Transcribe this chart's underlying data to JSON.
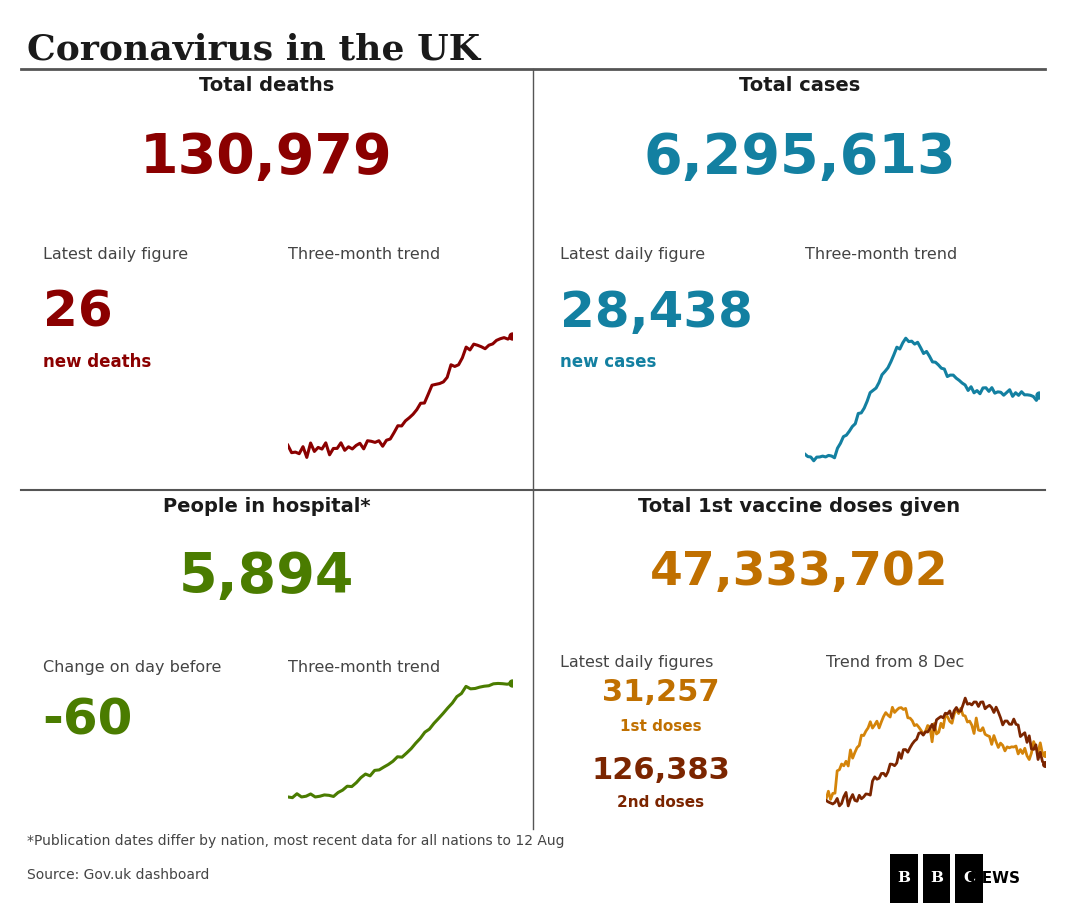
{
  "title": "Coronavirus in the UK",
  "bg_color": "#ffffff",
  "title_color": "#1a1a1a",
  "divider_color": "#555555",
  "deaths_title": "Total deaths",
  "deaths_total": "130,979",
  "deaths_total_color": "#8B0000",
  "deaths_daily_label": "Latest daily figure",
  "deaths_trend_label": "Three-month trend",
  "deaths_daily_value": "26",
  "deaths_daily_color": "#8B0000",
  "deaths_daily_sublabel": "new deaths",
  "deaths_trend_color": "#8B0000",
  "cases_title": "Total cases",
  "cases_total": "6,295,613",
  "cases_total_color": "#1380A1",
  "cases_daily_label": "Latest daily figure",
  "cases_trend_label": "Three-month trend",
  "cases_daily_value": "28,438",
  "cases_daily_color": "#1380A1",
  "cases_daily_sublabel": "new cases",
  "cases_trend_color": "#1380A1",
  "hospital_title": "People in hospital*",
  "hospital_total": "5,894",
  "hospital_total_color": "#4a7c00",
  "hospital_daily_label": "Change on day before",
  "hospital_trend_label": "Three-month trend",
  "hospital_daily_value": "-60",
  "hospital_daily_color": "#4a7c00",
  "hospital_trend_color": "#4a7c00",
  "vaccine_title": "Total 1st vaccine doses given",
  "vaccine_total": "47,333,702",
  "vaccine_total_color": "#c07000",
  "vaccine_daily_label": "Latest daily figures",
  "vaccine_trend_label": "Trend from 8 Dec",
  "vaccine_dose1_value": "31,257",
  "vaccine_dose1_color": "#c07000",
  "vaccine_dose1_sublabel": "1st doses",
  "vaccine_dose2_value": "126,383",
  "vaccine_dose2_color": "#7B2500",
  "vaccine_dose2_sublabel": "2nd doses",
  "vaccine_trend_color1": "#d4840a",
  "vaccine_trend_color2": "#7B2500",
  "footnote": "*Publication dates differ by nation, most recent data for all nations to 12 Aug",
  "source": "Source: Gov.uk dashboard",
  "label_color": "#444444"
}
